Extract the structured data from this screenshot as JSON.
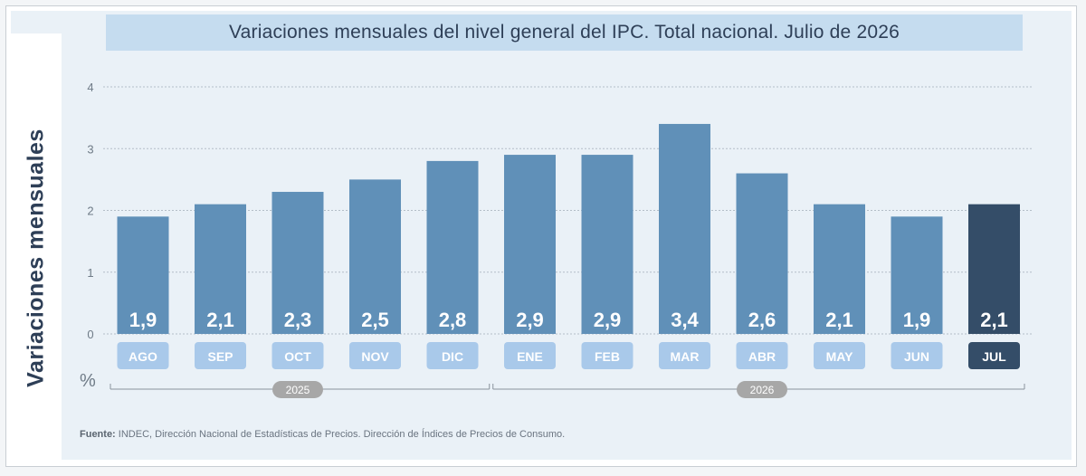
{
  "title": "Variaciones mensuales del nivel general del IPC. Total nacional. Julio de 2026",
  "source_label": "Fuente:",
  "source_text": "INDEC, Dirección Nacional de Estadísticas de Precios. Dirección de Índices de Precios de Consumo.",
  "colors": {
    "bar": "#6090b8",
    "bar_highlight": "#344d68",
    "month_tile": "#a9c9ea",
    "month_tile_highlight": "#344d68",
    "year_pill": "#a7a7a7",
    "grid": "#b4bec8",
    "title_bg": "#c5dcef"
  },
  "chart_data": {
    "type": "bar",
    "title": "Variaciones mensuales del nivel general del IPC. Total nacional. Julio de 2026",
    "ylabel": "Variaciones mensuales",
    "unit": "%",
    "ylim": [
      0,
      4
    ],
    "yticks": [
      "0",
      "1",
      "2",
      "3",
      "4"
    ],
    "grid": true,
    "categories": [
      "AGO",
      "SEP",
      "OCT",
      "NOV",
      "DIC",
      "ENE",
      "FEB",
      "MAR",
      "ABR",
      "MAY",
      "JUN",
      "JUL"
    ],
    "values": [
      1.9,
      2.1,
      2.3,
      2.5,
      2.8,
      2.9,
      2.9,
      3.4,
      2.6,
      2.1,
      1.9,
      2.1
    ],
    "value_labels": [
      "1,9",
      "2,1",
      "2,3",
      "2,5",
      "2,8",
      "2,9",
      "2,9",
      "3,4",
      "2,6",
      "2,1",
      "1,9",
      "2,1"
    ],
    "highlight_index": 11,
    "year_groups": [
      {
        "label": "2025",
        "start": 0,
        "end": 4
      },
      {
        "label": "2026",
        "start": 5,
        "end": 11
      }
    ]
  }
}
